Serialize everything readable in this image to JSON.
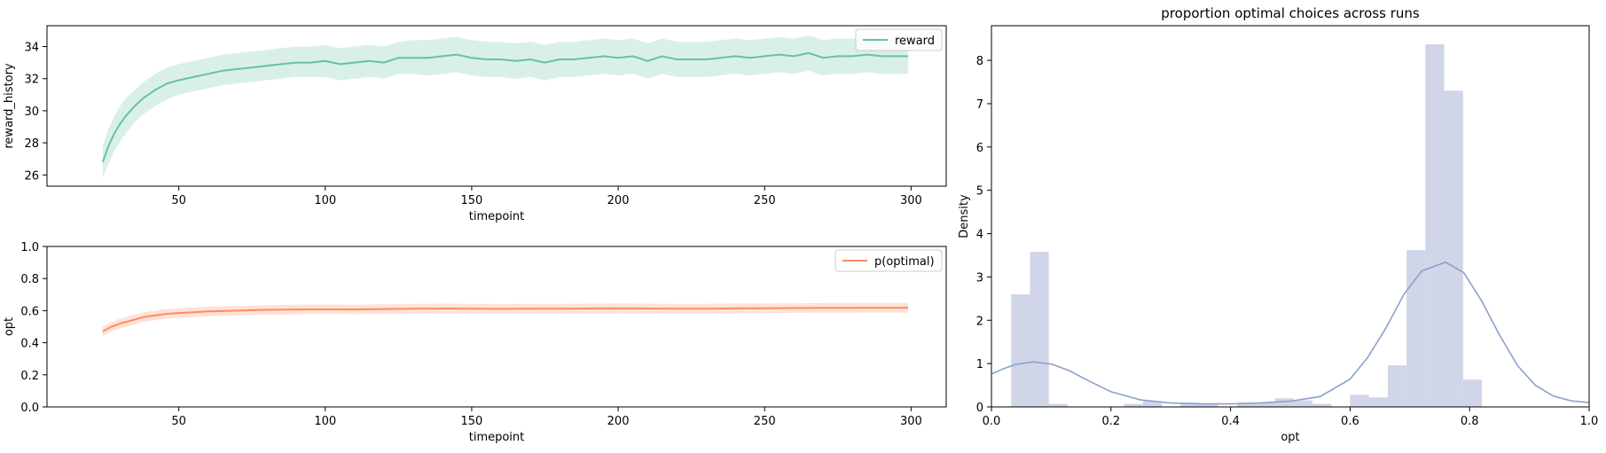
{
  "chart_data": [
    {
      "type": "line",
      "title": "",
      "xlabel": "timepoint",
      "ylabel": "reward_history",
      "xlim": [
        5,
        312
      ],
      "ylim": [
        25.3,
        35.3
      ],
      "xticks": [
        50,
        100,
        150,
        200,
        250,
        300
      ],
      "yticks": [
        26,
        28,
        30,
        32,
        34
      ],
      "legend": {
        "placement": "top-right",
        "entries": [
          "reward"
        ]
      },
      "grid": false,
      "series": [
        {
          "name": "reward",
          "color": "#66c2a5",
          "band": "confidence interval",
          "x": [
            24,
            26,
            28,
            30,
            32,
            35,
            38,
            42,
            46,
            50,
            55,
            60,
            65,
            70,
            75,
            80,
            85,
            90,
            95,
            100,
            105,
            110,
            115,
            120,
            125,
            130,
            135,
            140,
            145,
            150,
            155,
            160,
            165,
            170,
            175,
            180,
            185,
            190,
            195,
            200,
            205,
            210,
            215,
            220,
            225,
            230,
            235,
            240,
            245,
            250,
            255,
            260,
            265,
            270,
            275,
            280,
            285,
            290,
            295,
            299
          ],
          "values": [
            26.8,
            27.8,
            28.6,
            29.2,
            29.7,
            30.3,
            30.8,
            31.3,
            31.7,
            31.9,
            32.1,
            32.3,
            32.5,
            32.6,
            32.7,
            32.8,
            32.9,
            33.0,
            33.0,
            33.1,
            32.9,
            33.0,
            33.1,
            33.0,
            33.3,
            33.3,
            33.3,
            33.4,
            33.5,
            33.3,
            33.2,
            33.2,
            33.1,
            33.2,
            33.0,
            33.2,
            33.2,
            33.3,
            33.4,
            33.3,
            33.4,
            33.1,
            33.4,
            33.2,
            33.2,
            33.2,
            33.3,
            33.4,
            33.3,
            33.4,
            33.5,
            33.4,
            33.6,
            33.3,
            33.4,
            33.4,
            33.5,
            33.4,
            33.4,
            33.4
          ],
          "lower": [
            25.8,
            26.7,
            27.5,
            28.1,
            28.6,
            29.3,
            29.8,
            30.3,
            30.7,
            31.0,
            31.2,
            31.4,
            31.6,
            31.7,
            31.8,
            31.9,
            32.0,
            32.1,
            32.1,
            32.1,
            31.9,
            32.0,
            32.1,
            32.0,
            32.3,
            32.3,
            32.2,
            32.3,
            32.4,
            32.2,
            32.1,
            32.1,
            32.0,
            32.1,
            31.9,
            32.1,
            32.1,
            32.2,
            32.3,
            32.2,
            32.3,
            32.0,
            32.3,
            32.1,
            32.1,
            32.1,
            32.2,
            32.3,
            32.2,
            32.3,
            32.4,
            32.3,
            32.5,
            32.2,
            32.3,
            32.3,
            32.4,
            32.3,
            32.3,
            32.3
          ],
          "upper": [
            27.8,
            28.9,
            29.7,
            30.3,
            30.8,
            31.3,
            31.8,
            32.3,
            32.7,
            32.9,
            33.1,
            33.3,
            33.5,
            33.6,
            33.7,
            33.8,
            33.9,
            34.0,
            34.0,
            34.1,
            33.9,
            34.0,
            34.1,
            34.0,
            34.3,
            34.4,
            34.4,
            34.5,
            34.6,
            34.4,
            34.3,
            34.3,
            34.2,
            34.3,
            34.1,
            34.3,
            34.3,
            34.4,
            34.5,
            34.4,
            34.5,
            34.2,
            34.5,
            34.3,
            34.3,
            34.3,
            34.4,
            34.5,
            34.4,
            34.5,
            34.6,
            34.5,
            34.7,
            34.4,
            34.5,
            34.5,
            34.6,
            34.5,
            34.5,
            34.5
          ]
        }
      ]
    },
    {
      "type": "line",
      "title": "",
      "xlabel": "timepoint",
      "ylabel": "opt",
      "xlim": [
        5,
        312
      ],
      "ylim": [
        0.0,
        1.0
      ],
      "xticks": [
        50,
        100,
        150,
        200,
        250,
        300
      ],
      "yticks": [
        0.0,
        0.2,
        0.4,
        0.6,
        0.8,
        1.0
      ],
      "legend": {
        "placement": "top-right",
        "entries": [
          "p(optimal)"
        ]
      },
      "grid": false,
      "series": [
        {
          "name": "p(optimal)",
          "color": "#fc8d62",
          "band": "confidence interval",
          "x": [
            24,
            27,
            30,
            34,
            38,
            42,
            46,
            50,
            55,
            60,
            70,
            80,
            90,
            100,
            110,
            120,
            130,
            140,
            150,
            160,
            170,
            180,
            190,
            200,
            210,
            220,
            230,
            240,
            250,
            260,
            270,
            280,
            290,
            299
          ],
          "values": [
            0.47,
            0.5,
            0.52,
            0.54,
            0.56,
            0.57,
            0.58,
            0.585,
            0.59,
            0.595,
            0.6,
            0.605,
            0.607,
            0.608,
            0.607,
            0.61,
            0.612,
            0.613,
            0.612,
            0.611,
            0.612,
            0.612,
            0.613,
            0.614,
            0.613,
            0.612,
            0.612,
            0.614,
            0.615,
            0.616,
            0.617,
            0.617,
            0.618,
            0.618
          ],
          "lower": [
            0.44,
            0.47,
            0.49,
            0.51,
            0.53,
            0.54,
            0.55,
            0.555,
            0.56,
            0.565,
            0.57,
            0.575,
            0.577,
            0.578,
            0.577,
            0.58,
            0.582,
            0.583,
            0.582,
            0.581,
            0.582,
            0.582,
            0.583,
            0.584,
            0.583,
            0.582,
            0.582,
            0.584,
            0.585,
            0.586,
            0.587,
            0.587,
            0.588,
            0.588
          ],
          "upper": [
            0.5,
            0.53,
            0.55,
            0.57,
            0.59,
            0.6,
            0.61,
            0.615,
            0.62,
            0.625,
            0.63,
            0.635,
            0.637,
            0.638,
            0.637,
            0.64,
            0.642,
            0.643,
            0.642,
            0.641,
            0.642,
            0.642,
            0.643,
            0.644,
            0.643,
            0.642,
            0.642,
            0.644,
            0.645,
            0.646,
            0.647,
            0.647,
            0.648,
            0.648
          ]
        }
      ]
    },
    {
      "type": "bar",
      "title": "proportion optimal choices across runs",
      "xlabel": "opt",
      "ylabel": "Density",
      "xlim": [
        0.0,
        1.0
      ],
      "ylim": [
        0,
        8.8
      ],
      "xticks": [
        0.0,
        0.2,
        0.4,
        0.6,
        0.8,
        1.0
      ],
      "yticks": [
        0,
        1,
        2,
        3,
        4,
        5,
        6,
        7,
        8
      ],
      "grid": false,
      "histogram": {
        "color": "#d0d6e8",
        "bin_edges": [
          0.033,
          0.0645,
          0.096,
          0.1275,
          0.159,
          0.1905,
          0.222,
          0.2535,
          0.285,
          0.3165,
          0.348,
          0.3795,
          0.411,
          0.4425,
          0.474,
          0.5055,
          0.537,
          0.5685,
          0.6,
          0.6315,
          0.663,
          0.6945,
          0.726,
          0.7575,
          0.789,
          0.8205,
          0.852
        ],
        "values": [
          2.6,
          3.58,
          0.07,
          0,
          0,
          0,
          0.07,
          0.13,
          0,
          0.1,
          0.06,
          0,
          0.1,
          0.1,
          0.2,
          0.15,
          0.07,
          0,
          0.28,
          0.22,
          0.96,
          3.62,
          8.37,
          7.3,
          0.63,
          0
        ]
      },
      "kde": {
        "color": "#8da0cb",
        "x": [
          0.0,
          0.02,
          0.04,
          0.07,
          0.1,
          0.13,
          0.16,
          0.2,
          0.25,
          0.3,
          0.35,
          0.4,
          0.45,
          0.5,
          0.55,
          0.6,
          0.63,
          0.66,
          0.69,
          0.72,
          0.76,
          0.79,
          0.82,
          0.85,
          0.88,
          0.91,
          0.94,
          0.97,
          1.0
        ],
        "values": [
          0.76,
          0.88,
          0.98,
          1.04,
          0.99,
          0.84,
          0.62,
          0.35,
          0.16,
          0.09,
          0.07,
          0.07,
          0.09,
          0.13,
          0.24,
          0.64,
          1.15,
          1.82,
          2.6,
          3.14,
          3.34,
          3.1,
          2.45,
          1.66,
          0.96,
          0.5,
          0.25,
          0.14,
          0.1
        ]
      }
    }
  ]
}
